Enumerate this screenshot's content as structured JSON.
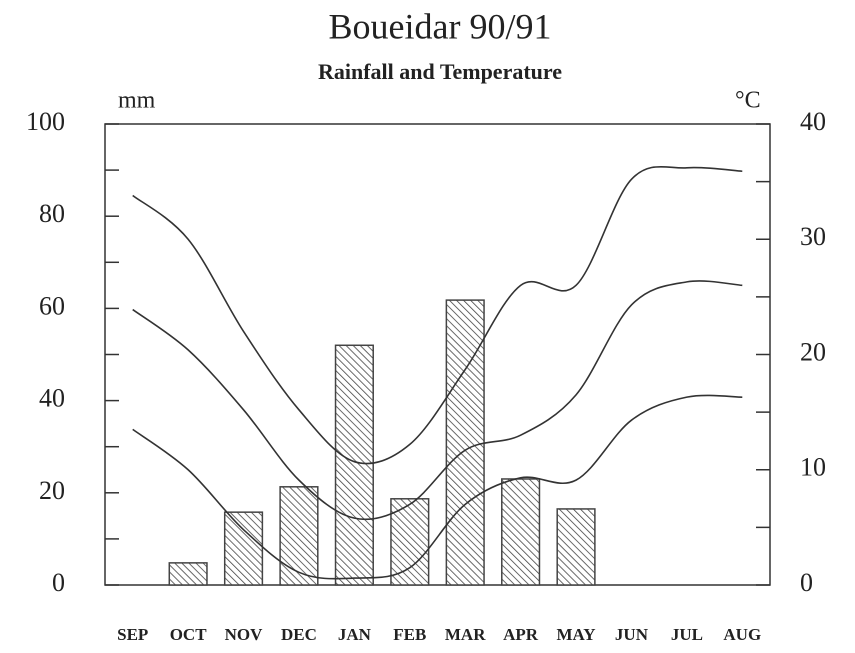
{
  "chart_data": {
    "type": "bar",
    "title": "Boueidar 90/91",
    "subtitle": "Rainfall and Temperature",
    "ylabel": "mm",
    "y2label": "°C",
    "categories": [
      "SEP",
      "OCT",
      "NOV",
      "DEC",
      "JAN",
      "FEB",
      "MAR",
      "APR",
      "MAY",
      "JUN",
      "JUL",
      "AUG"
    ],
    "values": [
      0,
      4.8,
      15.8,
      21.3,
      52,
      18.7,
      61.8,
      23,
      16.5,
      0,
      0,
      0
    ],
    "color": "#444444",
    "ylim": [
      0,
      100
    ],
    "yticks": [
      0,
      20,
      40,
      60,
      80,
      100
    ],
    "y2lim": [
      0,
      40
    ],
    "y2ticks": [
      0,
      10,
      20,
      30,
      40
    ],
    "series": [
      {
        "color": "#333333",
        "axis": "y2",
        "values": [
          33.8,
          30,
          22,
          15.2,
          10.7,
          12.2,
          18.7,
          26,
          26,
          35.2,
          36.2,
          35.9
        ]
      },
      {
        "color": "#333333",
        "axis": "y2",
        "values": [
          23.9,
          20.4,
          15.2,
          9.1,
          5.8,
          7,
          11.7,
          13,
          16.5,
          24.3,
          26.3,
          26
        ]
      },
      {
        "color": "#333333",
        "axis": "y2",
        "values": [
          13.5,
          10,
          4.8,
          1.1,
          0.6,
          1.5,
          7,
          9.3,
          9.1,
          14.3,
          16.3,
          16.3
        ]
      }
    ]
  }
}
